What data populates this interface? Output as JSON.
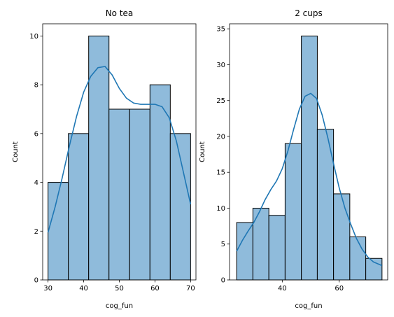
{
  "chart_data": [
    {
      "type": "histogram",
      "title": "No tea",
      "xlabel": "cog_fun",
      "ylabel": "Count",
      "xlim": [
        28.5,
        71.5
      ],
      "ylim": [
        0,
        10.5
      ],
      "xticks": [
        30,
        40,
        50,
        60,
        70
      ],
      "yticks": [
        0,
        2,
        4,
        6,
        8,
        10
      ],
      "bin_edges": [
        30,
        35.7,
        41.4,
        47.1,
        52.9,
        58.6,
        64.3,
        70
      ],
      "counts": [
        4,
        6,
        10,
        7,
        7,
        8,
        6
      ],
      "kde": {
        "x": [
          30,
          32,
          34,
          36,
          38,
          40,
          42,
          44,
          46,
          48,
          50,
          52,
          54,
          56,
          58,
          60,
          62,
          64,
          66,
          68,
          70
        ],
        "y": [
          1.95,
          3.0,
          4.2,
          5.5,
          6.7,
          7.7,
          8.35,
          8.7,
          8.75,
          8.4,
          7.85,
          7.45,
          7.25,
          7.2,
          7.2,
          7.2,
          7.1,
          6.65,
          5.7,
          4.4,
          3.1
        ]
      },
      "grid": false,
      "bar_color": "#8fbbdb",
      "line_color": "#1f77b4"
    },
    {
      "type": "histogram",
      "title": "2 cups",
      "xlabel": "cog_fun",
      "ylabel": "Count",
      "xlim": [
        21.5,
        77
      ],
      "ylim": [
        0,
        35.7
      ],
      "xticks": [
        40,
        60
      ],
      "yticks": [
        0,
        5,
        10,
        15,
        20,
        25,
        30,
        35
      ],
      "bin_edges": [
        24,
        29.7,
        35.3,
        41,
        46.7,
        52.3,
        58,
        63.7,
        69.3,
        75
      ],
      "counts": [
        8,
        10,
        9,
        19,
        34,
        21,
        12,
        6,
        3
      ],
      "kde": {
        "x": [
          24,
          26,
          28,
          30,
          32,
          34,
          36,
          38,
          40,
          42,
          44,
          46,
          48,
          50,
          52,
          54,
          56,
          58,
          60,
          62,
          64,
          66,
          68,
          70,
          72,
          75
        ],
        "y": [
          4.0,
          5.5,
          6.8,
          8.0,
          9.5,
          11.2,
          12.6,
          13.8,
          15.5,
          18.0,
          21.0,
          23.8,
          25.6,
          26.0,
          25.3,
          23.0,
          19.8,
          16.2,
          12.8,
          10.0,
          7.8,
          5.8,
          4.3,
          3.2,
          2.5,
          2.0
        ]
      },
      "grid": false,
      "bar_color": "#8fbbdb",
      "line_color": "#1f77b4"
    }
  ]
}
